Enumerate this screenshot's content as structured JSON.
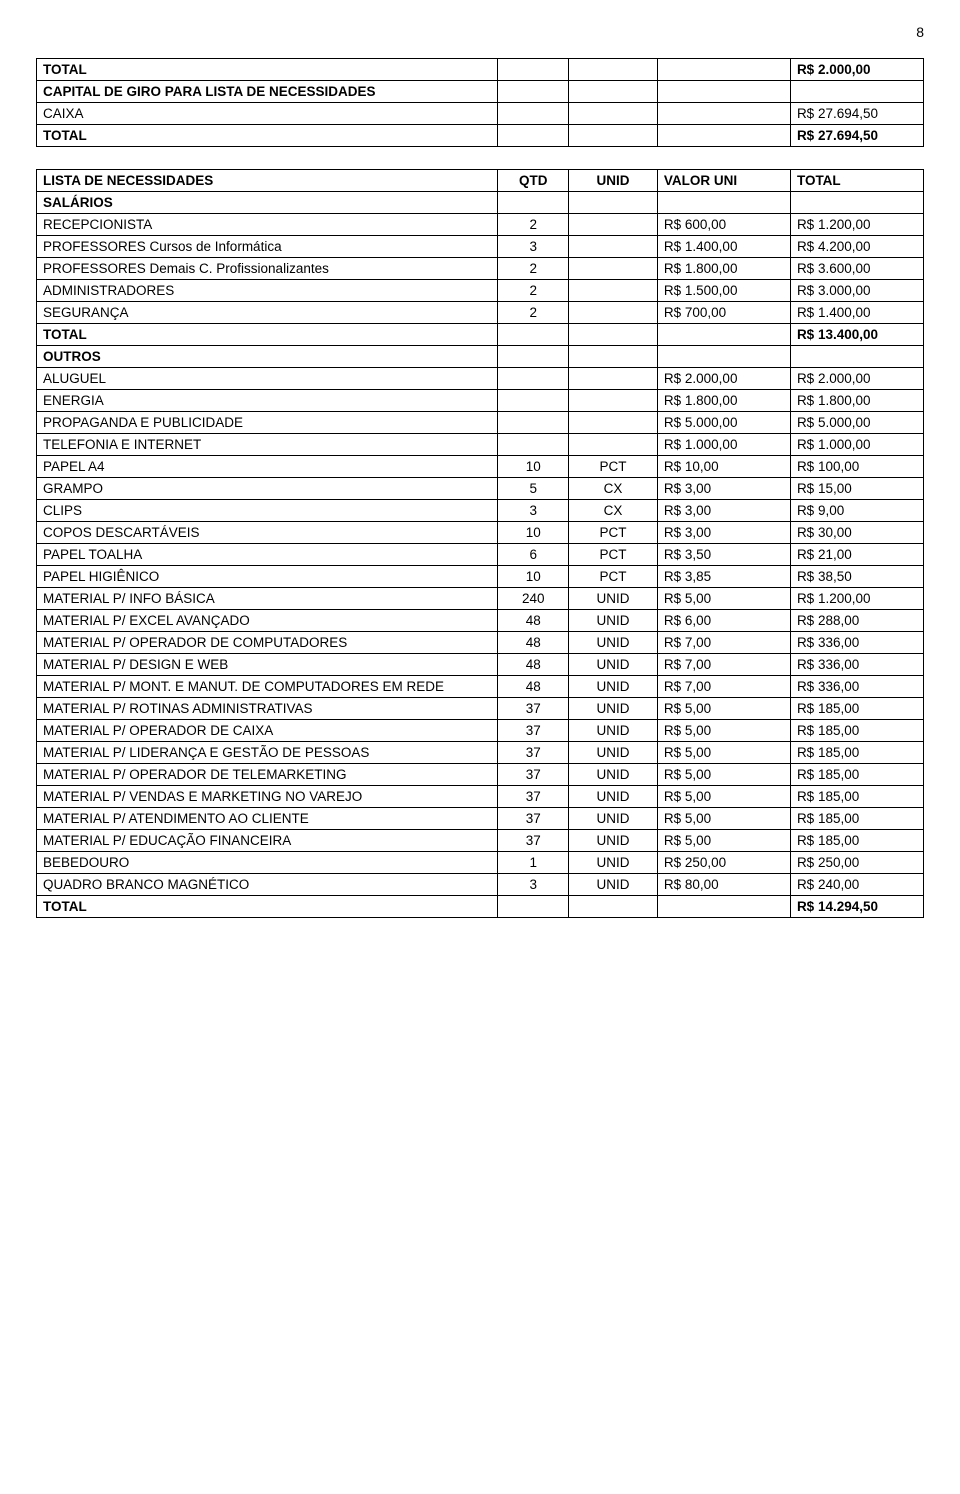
{
  "page_number": "8",
  "table1": {
    "rows": [
      {
        "label": "TOTAL",
        "bold": true,
        "total": "R$ 2.000,00"
      },
      {
        "label": "CAPITAL DE GIRO PARA LISTA DE NECESSIDADES",
        "bold": true
      },
      {
        "label": "CAIXA",
        "bold": false,
        "total": "R$ 27.694,50"
      },
      {
        "label": "TOTAL",
        "bold": true,
        "total": "R$ 27.694,50"
      }
    ]
  },
  "table2": {
    "header": {
      "c1": "LISTA DE NECESSIDADES",
      "c2": "QTD",
      "c3": "UNID",
      "c4": "VALOR UNI",
      "c5": "TOTAL"
    },
    "rows": [
      {
        "label": "SALÁRIOS",
        "bold": true
      },
      {
        "label": "RECEPCIONISTA",
        "qtd": "2",
        "valor": "R$ 600,00",
        "total": "R$ 1.200,00"
      },
      {
        "label": "PROFESSORES Cursos de Informática",
        "qtd": "3",
        "valor": "R$ 1.400,00",
        "total": "R$ 4.200,00"
      },
      {
        "label": "PROFESSORES Demais C. Profissionalizantes",
        "qtd": "2",
        "valor": "R$ 1.800,00",
        "total": "R$ 3.600,00"
      },
      {
        "label": "ADMINISTRADORES",
        "qtd": "2",
        "valor": "R$ 1.500,00",
        "total": "R$ 3.000,00"
      },
      {
        "label": "SEGURANÇA",
        "qtd": "2",
        "valor": "R$ 700,00",
        "total": "R$ 1.400,00"
      },
      {
        "label": "TOTAL",
        "bold": true,
        "total": "R$ 13.400,00"
      },
      {
        "label": "OUTROS",
        "bold": true
      },
      {
        "label": "ALUGUEL",
        "valor": "R$ 2.000,00",
        "total": "R$ 2.000,00"
      },
      {
        "label": "ENERGIA",
        "valor": "R$ 1.800,00",
        "total": "R$ 1.800,00"
      },
      {
        "label": "PROPAGANDA E PUBLICIDADE",
        "valor": "R$ 5.000,00",
        "total": "R$ 5.000,00"
      },
      {
        "label": "TELEFONIA E INTERNET",
        "valor": "R$ 1.000,00",
        "total": "R$ 1.000,00"
      },
      {
        "label": "PAPEL A4",
        "qtd": "10",
        "unid": "PCT",
        "valor": "R$ 10,00",
        "total": "R$ 100,00"
      },
      {
        "label": "GRAMPO",
        "qtd": "5",
        "unid": "CX",
        "valor": "R$ 3,00",
        "total": "R$ 15,00"
      },
      {
        "label": "CLIPS",
        "qtd": "3",
        "unid": "CX",
        "valor": "R$ 3,00",
        "total": "R$ 9,00"
      },
      {
        "label": "COPOS DESCARTÁVEIS",
        "qtd": "10",
        "unid": "PCT",
        "valor": "R$ 3,00",
        "total": "R$ 30,00"
      },
      {
        "label": "PAPEL TOALHA",
        "qtd": "6",
        "unid": "PCT",
        "valor": "R$ 3,50",
        "total": "R$ 21,00"
      },
      {
        "label": "PAPEL HIGIÊNICO",
        "qtd": "10",
        "unid": "PCT",
        "valor": "R$ 3,85",
        "total": "R$ 38,50"
      },
      {
        "label": "MATERIAL P/ INFO BÁSICA",
        "qtd": "240",
        "unid": "UNID",
        "valor": "R$ 5,00",
        "total": "R$ 1.200,00"
      },
      {
        "label": "MATERIAL P/ EXCEL AVANÇADO",
        "qtd": "48",
        "unid": "UNID",
        "valor": "R$ 6,00",
        "total": "R$ 288,00"
      },
      {
        "label": "MATERIAL P/ OPERADOR DE COMPUTADORES",
        "qtd": "48",
        "unid": "UNID",
        "valor": "R$ 7,00",
        "total": "R$ 336,00"
      },
      {
        "label": "MATERIAL P/ DESIGN E WEB",
        "qtd": "48",
        "unid": "UNID",
        "valor": "R$ 7,00",
        "total": "R$ 336,00"
      },
      {
        "label": "MATERIAL P/ MONT. E MANUT. DE COMPUTADORES EM REDE",
        "qtd": "48",
        "unid": "UNID",
        "valor": "R$ 7,00",
        "total": "R$ 336,00"
      },
      {
        "label": "MATERIAL P/ ROTINAS ADMINISTRATIVAS",
        "qtd": "37",
        "unid": "UNID",
        "valor": "R$ 5,00",
        "total": "R$ 185,00"
      },
      {
        "label": "MATERIAL P/ OPERADOR DE CAIXA",
        "qtd": "37",
        "unid": "UNID",
        "valor": "R$ 5,00",
        "total": "R$ 185,00"
      },
      {
        "label": "MATERIAL P/ LIDERANÇA E GESTÃO DE PESSOAS",
        "qtd": "37",
        "unid": "UNID",
        "valor": "R$ 5,00",
        "total": "R$ 185,00"
      },
      {
        "label": "MATERIAL P/ OPERADOR DE TELEMARKETING",
        "qtd": "37",
        "unid": "UNID",
        "valor": "R$ 5,00",
        "total": "R$ 185,00"
      },
      {
        "label": "MATERIAL P/ VENDAS E MARKETING NO VAREJO",
        "qtd": "37",
        "unid": "UNID",
        "valor": "R$ 5,00",
        "total": "R$ 185,00"
      },
      {
        "label": "MATERIAL P/ ATENDIMENTO AO CLIENTE",
        "qtd": "37",
        "unid": "UNID",
        "valor": "R$ 5,00",
        "total": "R$ 185,00"
      },
      {
        "label": "MATERIAL P/ EDUCAÇÃO FINANCEIRA",
        "qtd": "37",
        "unid": "UNID",
        "valor": "R$ 5,00",
        "total": "R$ 185,00"
      },
      {
        "label": "BEBEDOURO",
        "qtd": "1",
        "unid": "UNID",
        "valor": "R$ 250,00",
        "total": "R$ 250,00"
      },
      {
        "label": "QUADRO BRANCO MAGNÉTICO",
        "qtd": "3",
        "unid": "UNID",
        "valor": "R$ 80,00",
        "total": "R$ 240,00"
      },
      {
        "label": "TOTAL",
        "bold": true,
        "total": "R$ 14.294,50"
      }
    ]
  }
}
